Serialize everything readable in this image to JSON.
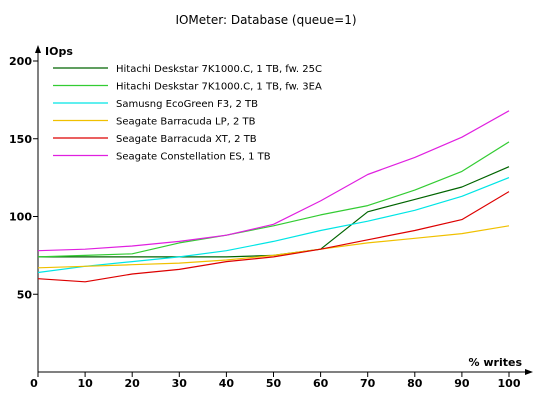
{
  "chart_data": {
    "type": "line",
    "title": "IOMeter: Database (queue=1)",
    "ylabel": "IOps",
    "xlabel": "% writes",
    "xlim": [
      0,
      100
    ],
    "ylim": [
      0,
      200
    ],
    "xticks": [
      0,
      10,
      20,
      30,
      40,
      50,
      60,
      70,
      80,
      90,
      100
    ],
    "yticks": [
      50,
      100,
      150,
      200
    ],
    "x": [
      0,
      10,
      20,
      30,
      40,
      50,
      60,
      70,
      80,
      90,
      100
    ],
    "legend_position": "top-left",
    "series": [
      {
        "name": "Hitachi Deskstar 7K1000.C, 1 TB, fw. 25C",
        "color": "#006400",
        "values": [
          74,
          74,
          74,
          74,
          74,
          75,
          79,
          103,
          111,
          119,
          132
        ]
      },
      {
        "name": "Hitachi Deskstar 7K1000.C, 1 TB, fw. 3EA",
        "color": "#33cc33",
        "values": [
          74,
          75,
          76,
          83,
          88,
          94,
          101,
          107,
          117,
          129,
          148
        ]
      },
      {
        "name": "Samusng EcoGreen F3, 2 TB",
        "color": "#00e5e5",
        "values": [
          64,
          68,
          71,
          74,
          78,
          84,
          91,
          97,
          104,
          113,
          125
        ]
      },
      {
        "name": "Seagate Barracuda LP, 2 TB",
        "color": "#f0c000",
        "values": [
          67,
          68,
          69,
          70,
          72,
          75,
          79,
          83,
          86,
          89,
          94
        ]
      },
      {
        "name": "Seagate Barracuda XT, 2 TB",
        "color": "#dd0000",
        "values": [
          60,
          58,
          63,
          66,
          71,
          74,
          79,
          85,
          91,
          98,
          116
        ]
      },
      {
        "name": "Seagate Constellation ES, 1 TB",
        "color": "#e020e0",
        "values": [
          78,
          79,
          81,
          84,
          88,
          95,
          110,
          127,
          138,
          151,
          168
        ]
      }
    ]
  }
}
